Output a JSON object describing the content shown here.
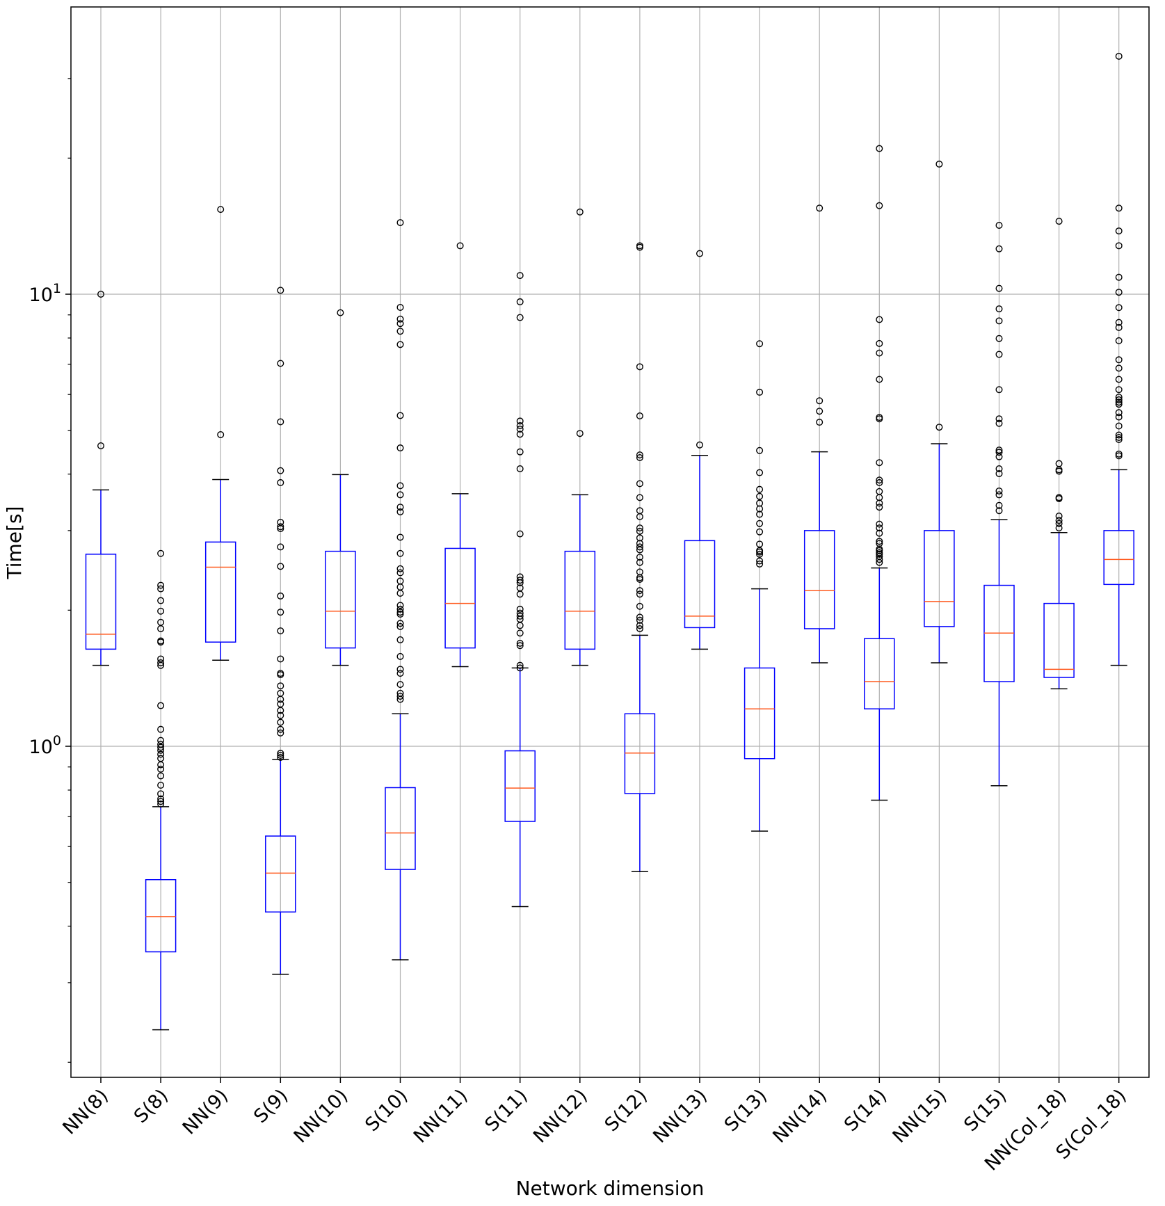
{
  "chart_data": {
    "type": "box",
    "xlabel": "Network dimension",
    "ylabel": "Time[s]",
    "yscale": "log",
    "ylim": [
      0.19,
      30
    ],
    "ytick_labels": [
      {
        "value": 1,
        "label": "10^0"
      },
      {
        "value": 10,
        "label": "10^1"
      }
    ],
    "grid": true,
    "colors": {
      "box": "#0000ff",
      "median": "#ff5a1f",
      "cap": "#000000",
      "flier": "#000000",
      "grid": "#b0b0b0"
    },
    "categories": [
      "NN(8)",
      "S(8)",
      "NN(9)",
      "S(9)",
      "NN(10)",
      "S(10)",
      "NN(11)",
      "S(11)",
      "NN(12)",
      "S(12)",
      "NN(13)",
      "S(13)",
      "NN(14)",
      "S(14)",
      "NN(15)",
      "S(15)",
      "NN(Col_18)",
      "S(Col_18)"
    ],
    "boxes": [
      {
        "label": "NN(8)",
        "whislo": 1.51,
        "q1": 1.64,
        "med": 1.77,
        "q3": 2.66,
        "whishi": 3.69,
        "fliers": [
          10.0,
          4.62
        ]
      },
      {
        "label": "S(8)",
        "whislo": 0.236,
        "q1": 0.351,
        "med": 0.42,
        "q3": 0.507,
        "whishi": 0.735,
        "fliers": [
          2.67,
          2.27,
          2.23,
          2.1,
          1.99,
          1.88,
          1.82,
          1.71,
          1.7,
          1.56,
          1.53,
          1.51,
          1.23,
          1.09,
          1.03,
          1.01,
          0.995,
          0.98,
          0.96,
          0.94,
          0.91,
          0.89,
          0.86,
          0.82,
          0.785,
          0.765,
          0.755,
          0.745
        ]
      },
      {
        "label": "NN(9)",
        "whislo": 1.55,
        "q1": 1.7,
        "med": 2.49,
        "q3": 2.83,
        "whishi": 3.89,
        "fliers": [
          15.4,
          4.89
        ]
      },
      {
        "label": "S(9)",
        "whislo": 0.313,
        "q1": 0.43,
        "med": 0.524,
        "q3": 0.633,
        "whishi": 0.935,
        "fliers": [
          10.2,
          7.03,
          5.22,
          4.07,
          3.83,
          3.13,
          3.06,
          3.03,
          2.76,
          2.5,
          2.15,
          1.98,
          1.8,
          1.56,
          1.45,
          1.44,
          1.36,
          1.31,
          1.27,
          1.24,
          1.2,
          1.17,
          1.13,
          1.09,
          1.07,
          0.965,
          0.955,
          0.945
        ]
      },
      {
        "label": "NN(10)",
        "whislo": 1.51,
        "q1": 1.65,
        "med": 1.99,
        "q3": 2.7,
        "whishi": 3.99,
        "fliers": [
          9.1
        ]
      },
      {
        "label": "S(10)",
        "whislo": 0.337,
        "q1": 0.534,
        "med": 0.643,
        "q3": 0.81,
        "whishi": 1.18,
        "fliers": [
          14.4,
          9.35,
          8.81,
          8.61,
          8.28,
          7.74,
          5.39,
          4.57,
          3.77,
          3.6,
          3.38,
          3.3,
          2.9,
          2.67,
          2.47,
          2.42,
          2.32,
          2.25,
          2.18,
          2.05,
          2.01,
          1.98,
          1.96,
          1.87,
          1.84,
          1.72,
          1.58,
          1.48,
          1.45,
          1.37,
          1.31,
          1.29,
          1.27
        ]
      },
      {
        "label": "NN(11)",
        "whislo": 1.5,
        "q1": 1.65,
        "med": 2.07,
        "q3": 2.74,
        "whishi": 3.62,
        "fliers": [
          12.8
        ]
      },
      {
        "label": "S(11)",
        "whislo": 0.442,
        "q1": 0.682,
        "med": 0.808,
        "q3": 0.977,
        "whishi": 1.49,
        "fliers": [
          11.0,
          9.62,
          8.88,
          5.24,
          5.12,
          5.03,
          4.9,
          4.48,
          4.11,
          2.95,
          2.37,
          2.33,
          2.3,
          2.24,
          2.17,
          2.01,
          1.97,
          1.94,
          1.91,
          1.85,
          1.78,
          1.69,
          1.67,
          1.51,
          1.49
        ]
      },
      {
        "label": "NN(12)",
        "whislo": 1.51,
        "q1": 1.64,
        "med": 1.99,
        "q3": 2.7,
        "whishi": 3.6,
        "fliers": [
          15.2,
          4.92
        ]
      },
      {
        "label": "S(12)",
        "whislo": 0.528,
        "q1": 0.786,
        "med": 0.966,
        "q3": 1.18,
        "whishi": 1.76,
        "fliers": [
          12.8,
          12.7,
          6.91,
          5.38,
          4.41,
          4.35,
          3.81,
          3.55,
          3.32,
          3.22,
          3.04,
          2.99,
          2.89,
          2.81,
          2.76,
          2.72,
          2.62,
          2.55,
          2.43,
          2.36,
          2.34,
          2.21,
          2.17,
          2.04,
          1.93,
          1.9,
          1.85,
          1.82
        ]
      },
      {
        "label": "NN(13)",
        "whislo": 1.64,
        "q1": 1.83,
        "med": 1.94,
        "q3": 2.85,
        "whishi": 4.4,
        "fliers": [
          12.3,
          4.64
        ]
      },
      {
        "label": "S(13)",
        "whislo": 0.649,
        "q1": 0.939,
        "med": 1.21,
        "q3": 1.49,
        "whishi": 2.23,
        "fliers": [
          7.77,
          6.07,
          4.51,
          4.03,
          3.7,
          3.57,
          3.45,
          3.35,
          3.26,
          3.11,
          2.98,
          2.8,
          2.71,
          2.69,
          2.66,
          2.57,
          2.53
        ]
      },
      {
        "label": "NN(14)",
        "whislo": 1.53,
        "q1": 1.82,
        "med": 2.21,
        "q3": 3.0,
        "whishi": 4.48,
        "fliers": [
          15.5,
          5.81,
          5.51,
          5.21
        ]
      },
      {
        "label": "S(14)",
        "whislo": 0.76,
        "q1": 1.21,
        "med": 1.39,
        "q3": 1.73,
        "whishi": 2.48,
        "fliers": [
          21.0,
          15.7,
          8.79,
          7.78,
          7.41,
          6.48,
          5.34,
          5.3,
          4.24,
          3.88,
          3.83,
          3.66,
          3.55,
          3.45,
          3.38,
          3.1,
          3.04,
          2.96,
          2.84,
          2.81,
          2.73,
          2.71,
          2.68,
          2.66,
          2.63,
          2.59,
          2.55
        ]
      },
      {
        "label": "NN(15)",
        "whislo": 1.53,
        "q1": 1.84,
        "med": 2.09,
        "q3": 3.0,
        "whishi": 4.67,
        "fliers": [
          19.4,
          5.08
        ]
      },
      {
        "label": "S(15)",
        "whislo": 0.818,
        "q1": 1.39,
        "med": 1.78,
        "q3": 2.27,
        "whishi": 3.17,
        "fliers": [
          14.2,
          12.6,
          10.3,
          9.28,
          8.73,
          7.98,
          7.36,
          6.15,
          5.3,
          5.18,
          4.52,
          4.47,
          4.37,
          4.11,
          4.01,
          3.67,
          3.6,
          3.41,
          3.32
        ]
      },
      {
        "label": "NN(Col_18)",
        "whislo": 1.34,
        "q1": 1.42,
        "med": 1.48,
        "q3": 2.07,
        "whishi": 2.97,
        "fliers": [
          14.5,
          4.22,
          4.09,
          4.06,
          3.55,
          3.53,
          3.23,
          3.16,
          3.11,
          3.04
        ]
      },
      {
        "label": "S(Col_18)",
        "whislo": 1.51,
        "q1": 2.28,
        "med": 2.59,
        "q3": 3.0,
        "whishi": 4.09,
        "fliers": [
          33.6,
          15.5,
          13.8,
          12.8,
          10.9,
          10.1,
          9.34,
          8.66,
          8.44,
          7.89,
          7.16,
          6.86,
          6.48,
          6.15,
          5.92,
          5.84,
          5.77,
          5.71,
          5.47,
          5.35,
          5.11,
          4.88,
          4.82,
          4.77,
          4.43,
          4.39
        ]
      }
    ]
  }
}
